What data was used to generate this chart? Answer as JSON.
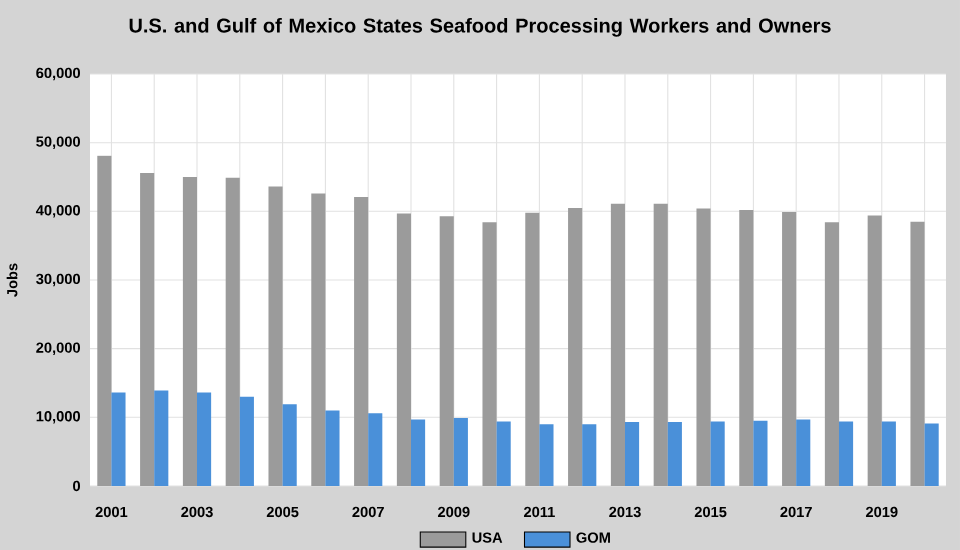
{
  "chart_data": {
    "type": "bar",
    "title": "U.S. and Gulf of Mexico States Seafood Processing Workers and Owners",
    "ylabel": "Jobs",
    "categories": [
      "2001",
      null,
      "2003",
      null,
      "2005",
      null,
      "2007",
      null,
      "2009",
      null,
      "2011",
      null,
      "2013",
      null,
      "2015",
      null,
      "2017",
      null,
      "2019",
      null
    ],
    "series": [
      {
        "name": "USA",
        "color": "#9b9b9b",
        "values": [
          48100,
          45600,
          45000,
          44900,
          43600,
          42600,
          42100,
          39700,
          39300,
          38400,
          39800,
          40500,
          41100,
          41100,
          40400,
          40200,
          39900,
          38400,
          39400,
          38500
        ]
      },
      {
        "name": "GOM",
        "color": "#4a90d9",
        "values": [
          13600,
          13900,
          13600,
          13000,
          11900,
          11000,
          10600,
          9700,
          9900,
          9400,
          9000,
          9000,
          9300,
          9300,
          9400,
          9500,
          9700,
          9400,
          9400,
          9100
        ]
      }
    ],
    "ylim": [
      0,
      60000
    ],
    "yticks": [
      {
        "value": 0,
        "label": "0"
      },
      {
        "value": 10000,
        "label": "10,000"
      },
      {
        "value": 20000,
        "label": "20,000"
      },
      {
        "value": 30000,
        "label": "30,000"
      },
      {
        "value": 40000,
        "label": "40,000"
      },
      {
        "value": 50000,
        "label": "50,000"
      },
      {
        "value": 60000,
        "label": "60,000"
      }
    ],
    "grid": true,
    "legend": "bottom"
  }
}
